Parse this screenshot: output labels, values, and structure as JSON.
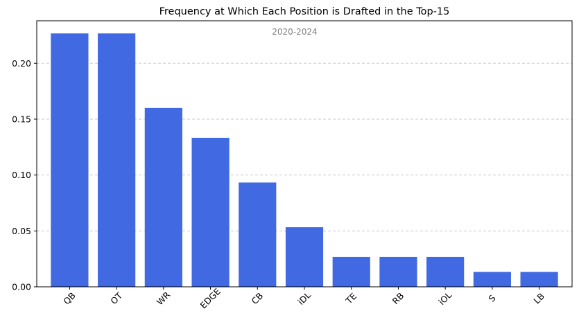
{
  "chart_data": {
    "type": "bar",
    "title": "Frequency at Which Each Position is Drafted in the Top-15",
    "subtitle": "2020-2024",
    "xlabel": "",
    "ylabel": "",
    "categories": [
      "QB",
      "OT",
      "WR",
      "EDGE",
      "CB",
      "iDL",
      "TE",
      "RB",
      "iOL",
      "S",
      "LB"
    ],
    "values": [
      0.2267,
      0.2267,
      0.16,
      0.1333,
      0.0933,
      0.0533,
      0.0267,
      0.0267,
      0.0267,
      0.0133,
      0.0133
    ],
    "ylim": [
      0,
      0.238
    ],
    "yticks": [
      0.0,
      0.05,
      0.1,
      0.15,
      0.2
    ],
    "ytick_labels": [
      "0.00",
      "0.05",
      "0.10",
      "0.15",
      "0.20"
    ],
    "grid": "y-dashed",
    "bar_color": "#4169e1",
    "grid_color": "#c8c8c8"
  }
}
